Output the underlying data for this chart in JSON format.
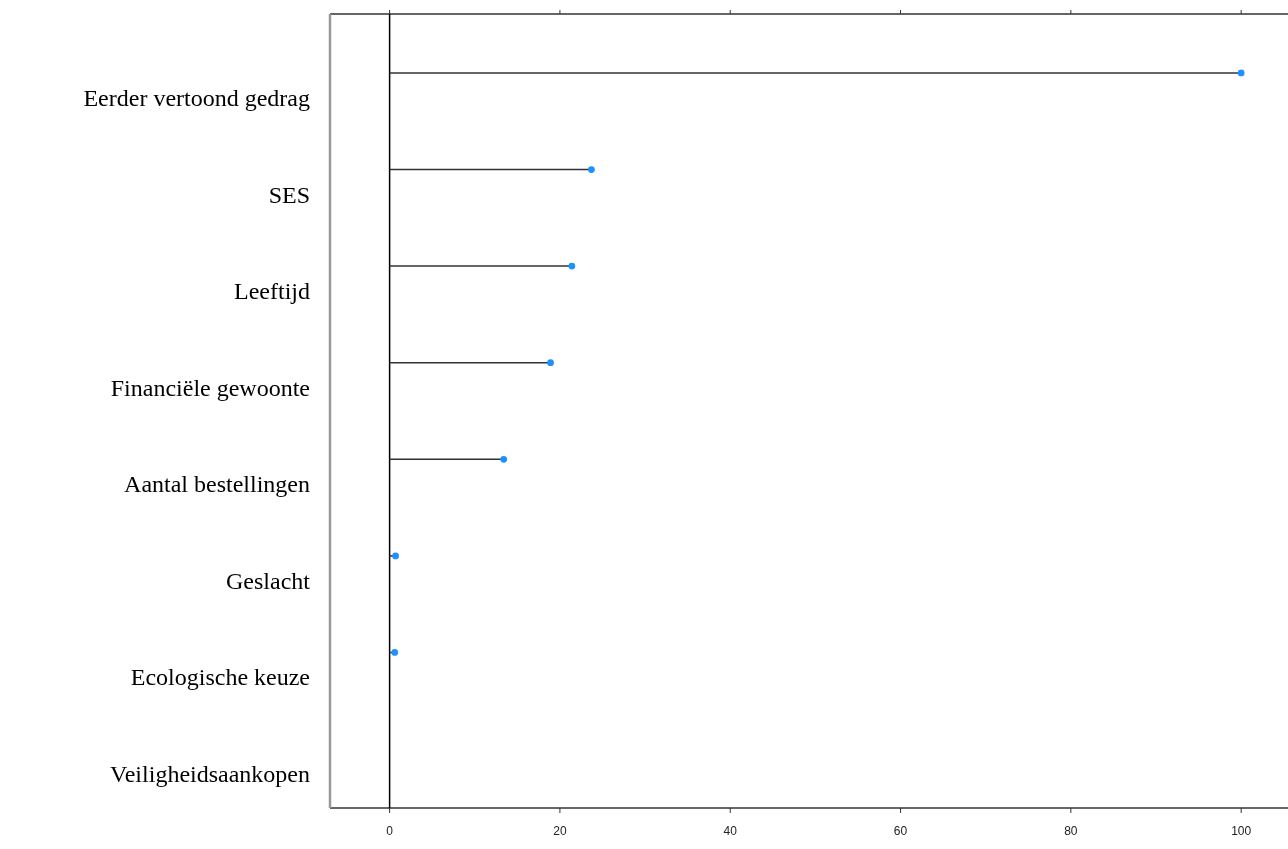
{
  "chart_data": {
    "type": "lollipop",
    "orientation": "horizontal",
    "categories": [
      "Eerder vertoond gedrag",
      "SES",
      "Leeftijd",
      "Financiële gewoonte",
      "Aantal bestellingen",
      "Geslacht",
      "Ecologische keuze",
      "Veiligheidsaankopen"
    ],
    "series": [
      {
        "color": "#1e90ff",
        "values": [
          100,
          23.7,
          21.4,
          18.9,
          13.4,
          0.7,
          0.6,
          null
        ]
      }
    ],
    "xlim": [
      -7,
      105.5
    ],
    "xticks": [
      0,
      20,
      40,
      60,
      80,
      100
    ],
    "ref_lines": [
      {
        "axis": "x",
        "value": 0,
        "color": "#000000"
      }
    ],
    "marker": "circle"
  }
}
